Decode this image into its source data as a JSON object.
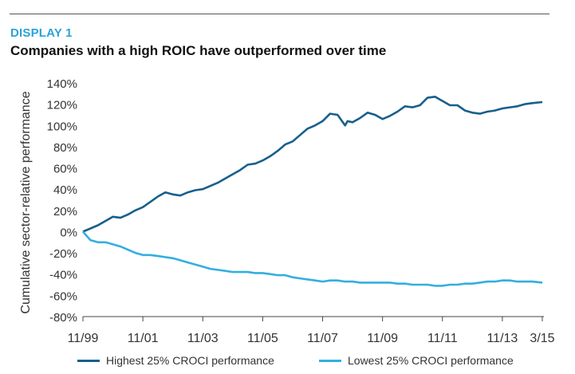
{
  "header": {
    "kicker": "DISPLAY 1",
    "title": "Companies with a high ROIC have outperformed over time"
  },
  "colors": {
    "kicker": "#2aa3d8",
    "high": "#175f8c",
    "low": "#34aee0",
    "axis": "#444444",
    "text": "#333333"
  },
  "chart_data": {
    "type": "line",
    "ylabel": "Cumulative sector-relative performance",
    "xlabel": "",
    "ylim": [
      -80,
      140
    ],
    "y_ticks": [
      140,
      120,
      100,
      80,
      60,
      40,
      20,
      0,
      -20,
      -40,
      -60,
      -80
    ],
    "y_tick_labels": [
      "140%",
      "120%",
      "100%",
      "80%",
      "60%",
      "40%",
      "20%",
      "0%",
      "-20%",
      "-40%",
      "-60%",
      "-80%"
    ],
    "x_ticks": [
      "11/99",
      "11/01",
      "11/03",
      "11/05",
      "11/07",
      "11/09",
      "11/11",
      "11/13",
      "3/15"
    ],
    "x": [
      "1999-11",
      "2000-02",
      "2000-05",
      "2000-08",
      "2000-11",
      "2001-02",
      "2001-05",
      "2001-08",
      "2001-11",
      "2002-02",
      "2002-05",
      "2002-08",
      "2002-11",
      "2003-02",
      "2003-05",
      "2003-08",
      "2003-11",
      "2004-02",
      "2004-05",
      "2004-08",
      "2004-11",
      "2005-02",
      "2005-05",
      "2005-08",
      "2005-11",
      "2006-02",
      "2006-05",
      "2006-08",
      "2006-11",
      "2007-02",
      "2007-05",
      "2007-08",
      "2007-11",
      "2008-02",
      "2008-05",
      "2008-08",
      "2008-09",
      "2008-11",
      "2009-02",
      "2009-05",
      "2009-08",
      "2009-11",
      "2010-02",
      "2010-05",
      "2010-08",
      "2010-11",
      "2011-02",
      "2011-05",
      "2011-08",
      "2011-11",
      "2012-02",
      "2012-05",
      "2012-08",
      "2012-11",
      "2013-02",
      "2013-05",
      "2013-08",
      "2013-11",
      "2014-02",
      "2014-05",
      "2014-08",
      "2014-11",
      "2015-03"
    ],
    "series": [
      {
        "name": "Highest 25% CROCI performance",
        "values": [
          0,
          3,
          6,
          10,
          14,
          13,
          16,
          20,
          23,
          28,
          33,
          37,
          35,
          34,
          37,
          39,
          40,
          43,
          46,
          50,
          54,
          58,
          63,
          64,
          67,
          71,
          76,
          82,
          85,
          91,
          97,
          100,
          104,
          111,
          110,
          100,
          104,
          103,
          107,
          112,
          110,
          106,
          109,
          113,
          118,
          117,
          119,
          126,
          127,
          123,
          119,
          119,
          114,
          112,
          111,
          113,
          114,
          116,
          117,
          118,
          120,
          121,
          122
        ]
      },
      {
        "name": "Lowest 25% CROCI performance",
        "values": [
          0,
          -8,
          -10,
          -10,
          -12,
          -14,
          -17,
          -20,
          -22,
          -22,
          -23,
          -24,
          -25,
          -27,
          -29,
          -31,
          -33,
          -35,
          -36,
          -37,
          -38,
          -38,
          -38,
          -39,
          -39,
          -40,
          -41,
          -41,
          -43,
          -44,
          -45,
          -46,
          -47,
          -46,
          -46,
          -47,
          -47,
          -47,
          -48,
          -48,
          -48,
          -48,
          -48,
          -49,
          -49,
          -50,
          -50,
          -50,
          -51,
          -51,
          -50,
          -50,
          -49,
          -49,
          -48,
          -47,
          -47,
          -46,
          -46,
          -47,
          -47,
          -47,
          -48
        ]
      }
    ],
    "grid": false,
    "legend": "bottom"
  },
  "legend": [
    {
      "label": "Highest 25% CROCI performance"
    },
    {
      "label": "Lowest 25% CROCI performance"
    }
  ]
}
